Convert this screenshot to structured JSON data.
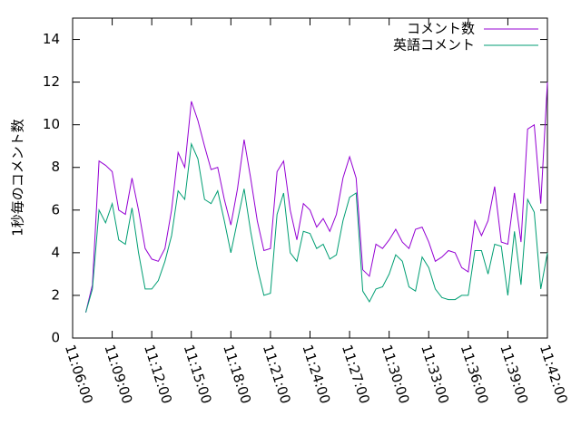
{
  "chart_data": {
    "type": "line",
    "y_label": "1秒毎のコメント数",
    "x": [
      "11:07:00",
      "11:07:30",
      "11:08:00",
      "11:08:30",
      "11:09:00",
      "11:09:30",
      "11:10:00",
      "11:10:30",
      "11:11:00",
      "11:11:30",
      "11:12:00",
      "11:12:30",
      "11:13:00",
      "11:13:30",
      "11:14:00",
      "11:14:30",
      "11:15:00",
      "11:15:30",
      "11:16:00",
      "11:16:30",
      "11:17:00",
      "11:17:30",
      "11:18:00",
      "11:18:30",
      "11:19:00",
      "11:19:30",
      "11:20:00",
      "11:20:30",
      "11:21:00",
      "11:21:30",
      "11:22:00",
      "11:22:30",
      "11:23:00",
      "11:23:30",
      "11:24:00",
      "11:24:30",
      "11:25:00",
      "11:25:30",
      "11:26:00",
      "11:26:30",
      "11:27:00",
      "11:27:30",
      "11:28:00",
      "11:28:30",
      "11:29:00",
      "11:29:30",
      "11:30:00",
      "11:30:30",
      "11:31:00",
      "11:31:30",
      "11:32:00",
      "11:32:30",
      "11:33:00",
      "11:33:30",
      "11:34:00",
      "11:34:30",
      "11:35:00",
      "11:35:30",
      "11:36:00",
      "11:36:30",
      "11:37:00",
      "11:37:30",
      "11:38:00",
      "11:38:30",
      "11:39:00",
      "11:39:30",
      "11:40:00",
      "11:40:30",
      "11:41:00",
      "11:41:30",
      "11:42:00"
    ],
    "series": [
      {
        "name": "コメント数",
        "color": "#9400d3",
        "values": [
          1.2,
          2.5,
          8.3,
          8.1,
          7.8,
          6.0,
          5.8,
          7.5,
          6.0,
          4.2,
          3.7,
          3.6,
          4.2,
          6.0,
          8.7,
          8.0,
          11.1,
          10.2,
          9.0,
          7.9,
          8.0,
          6.5,
          5.3,
          7.0,
          9.3,
          7.5,
          5.5,
          4.1,
          4.2,
          7.8,
          8.3,
          6.0,
          4.6,
          6.3,
          6.0,
          5.2,
          5.6,
          5.0,
          5.8,
          7.5,
          8.5,
          7.5,
          3.2,
          2.9,
          4.4,
          4.2,
          4.6,
          5.1,
          4.5,
          4.2,
          5.1,
          5.2,
          4.5,
          3.6,
          3.8,
          4.1,
          4.0,
          3.3,
          3.1,
          5.5,
          4.8,
          5.5,
          7.1,
          4.5,
          4.4,
          6.8,
          4.5,
          9.8,
          10.0,
          6.3,
          12.0
        ]
      },
      {
        "name": "英語コメント",
        "color": "#009e73",
        "values": [
          1.2,
          2.3,
          6.0,
          5.4,
          6.3,
          4.6,
          4.4,
          6.1,
          4.0,
          2.3,
          2.3,
          2.7,
          3.6,
          4.8,
          6.9,
          6.5,
          9.1,
          8.4,
          6.5,
          6.3,
          6.9,
          5.5,
          4.0,
          5.5,
          7.0,
          5.0,
          3.3,
          2.0,
          2.1,
          5.8,
          6.8,
          4.0,
          3.6,
          5.0,
          4.9,
          4.2,
          4.4,
          3.7,
          3.9,
          5.5,
          6.6,
          6.8,
          2.2,
          1.7,
          2.3,
          2.4,
          3.0,
          3.9,
          3.6,
          2.4,
          2.2,
          3.8,
          3.3,
          2.3,
          1.9,
          1.8,
          1.8,
          2.0,
          2.0,
          4.1,
          4.1,
          3.0,
          4.4,
          4.3,
          2.0,
          5.0,
          2.5,
          6.5,
          5.9,
          2.3,
          4.0
        ]
      }
    ],
    "xlim": [
      "11:06:00",
      "11:42:00"
    ],
    "xticks": [
      "11:06:00",
      "11:09:00",
      "11:12:00",
      "11:15:00",
      "11:18:00",
      "11:21:00",
      "11:24:00",
      "11:27:00",
      "11:30:00",
      "11:33:00",
      "11:36:00",
      "11:39:00",
      "11:42:00"
    ],
    "ylim": [
      0,
      15
    ],
    "yticks": [
      0,
      2,
      4,
      6,
      8,
      10,
      12,
      14
    ],
    "legend": "top-right"
  }
}
